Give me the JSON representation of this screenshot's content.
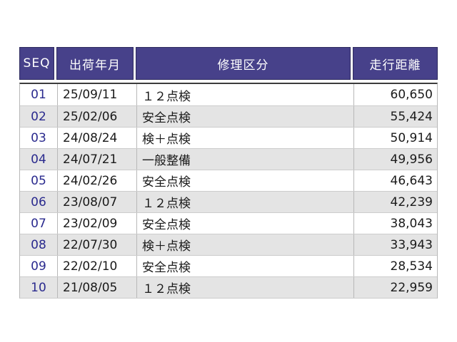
{
  "table": {
    "columns": [
      {
        "key": "seq",
        "label": "SEQ"
      },
      {
        "key": "date",
        "label": "出荷年月"
      },
      {
        "key": "repair",
        "label": "修理区分"
      },
      {
        "key": "distance",
        "label": "走行距離"
      }
    ],
    "rows": [
      {
        "seq": "01",
        "date": "25/09/11",
        "repair": "１２点検",
        "distance": "60,650"
      },
      {
        "seq": "02",
        "date": "25/02/06",
        "repair": "安全点検",
        "distance": "55,424"
      },
      {
        "seq": "03",
        "date": "24/08/24",
        "repair": "検＋点検",
        "distance": "50,914"
      },
      {
        "seq": "04",
        "date": "24/07/21",
        "repair": "一般整備",
        "distance": "49,956"
      },
      {
        "seq": "05",
        "date": "24/02/26",
        "repair": "安全点検",
        "distance": "46,643"
      },
      {
        "seq": "06",
        "date": "23/08/07",
        "repair": "１２点検",
        "distance": "42,239"
      },
      {
        "seq": "07",
        "date": "23/02/09",
        "repair": "安全点検",
        "distance": "38,043"
      },
      {
        "seq": "08",
        "date": "22/07/30",
        "repair": "検＋点検",
        "distance": "33,943"
      },
      {
        "seq": "09",
        "date": "22/02/10",
        "repair": "安全点検",
        "distance": "28,534"
      },
      {
        "seq": "10",
        "date": "21/08/05",
        "repair": "１２点検",
        "distance": "22,959"
      }
    ]
  },
  "colors": {
    "header_bg": "#47418a",
    "header_border": "#2e2b5e",
    "header_text": "#ffffff",
    "seq_text": "#2a2a8e",
    "alt_row_bg": "#e4e4e4",
    "grid_line": "#b8b8b8",
    "row_line": "#cccccc",
    "header_rule": "#3c3c3c",
    "data_text": "#1a1a1a"
  }
}
